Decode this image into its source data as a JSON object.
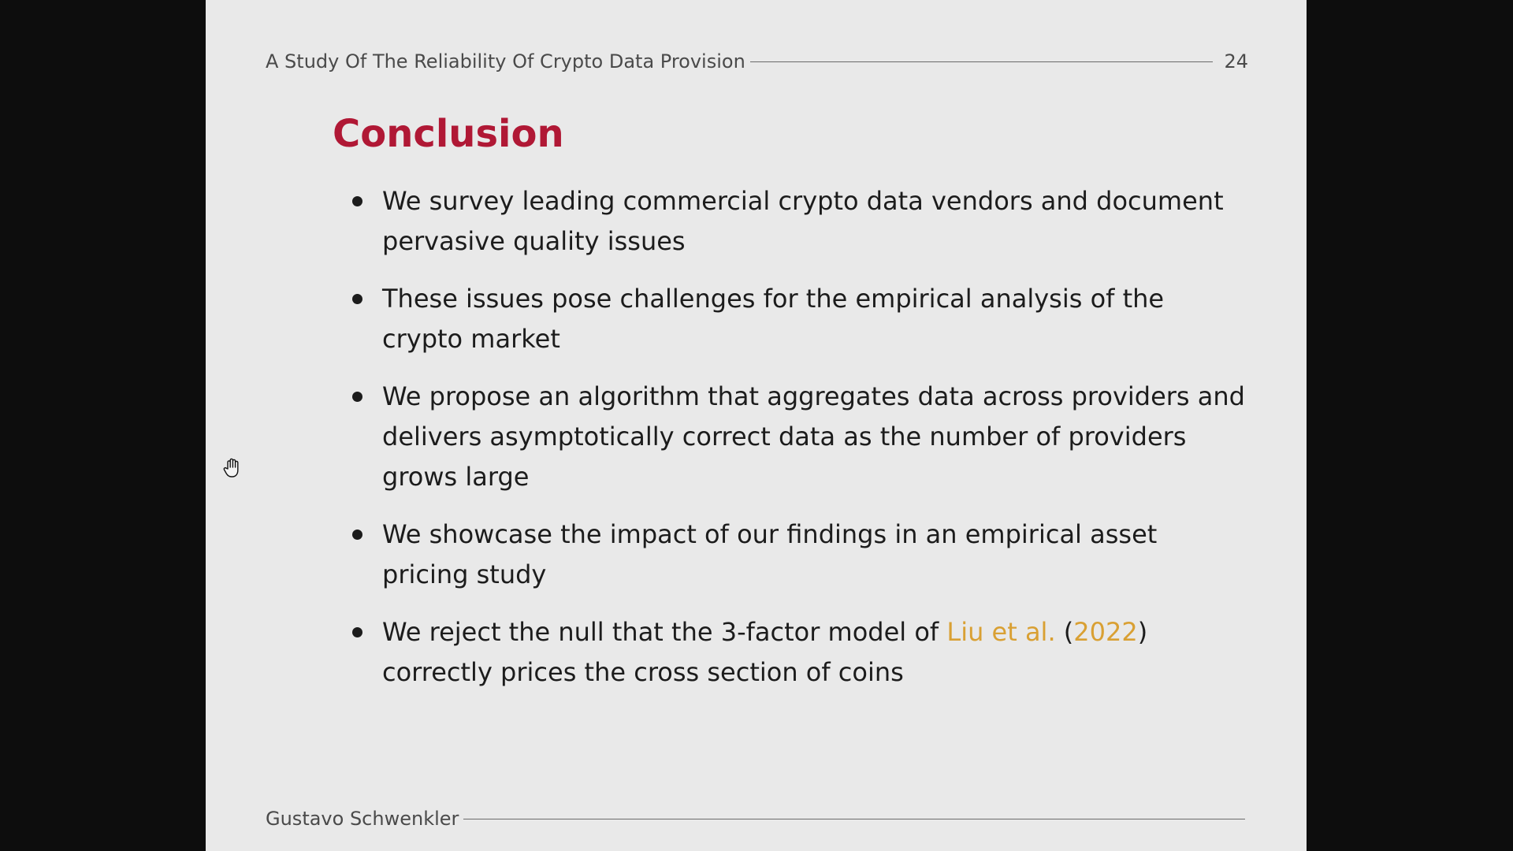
{
  "slide": {
    "header_title": "A Study Of The Reliability Of Crypto Data Provision",
    "page_number": "24",
    "title": "Conclusion",
    "bullets": [
      {
        "text": "We survey leading commercial crypto data vendors and document pervasive quality issues"
      },
      {
        "text": "These issues pose challenges for the empirical analysis of the crypto market"
      },
      {
        "text": "We propose an algorithm that aggregates data across providers and delivers asymptotically correct data as the number of providers grows large"
      },
      {
        "text": "We showcase the impact of our findings in an empirical asset pricing study"
      },
      {
        "text_before": "We reject the null that the 3-factor model of ",
        "citation_author": "Liu et al.",
        "paren_open": " (",
        "citation_year": "2022",
        "paren_close": ")",
        "text_after": " correctly prices the cross section of coins"
      }
    ],
    "footer_author": "Gustavo Schwenkler"
  },
  "colors": {
    "title": "#b01835",
    "citation": "#d9a033",
    "slide_background": "#e9e9e9",
    "frame_background": "#0d0d0d"
  },
  "cursor": {
    "icon": "hand-cursor-icon"
  }
}
